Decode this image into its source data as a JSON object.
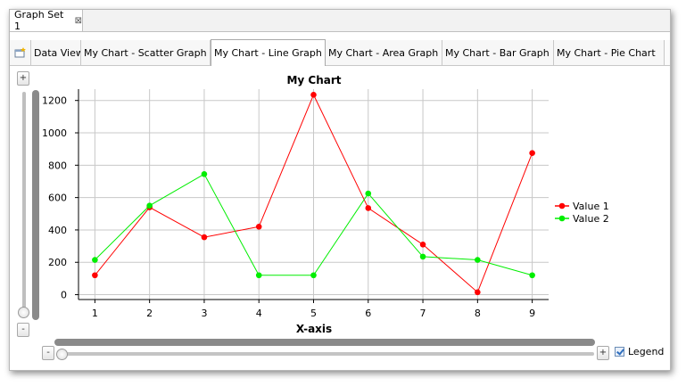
{
  "editor": {
    "tab_label": "Graph Set 1",
    "close_glyph": "⊠"
  },
  "tabs": [
    {
      "label": "",
      "icon": "new-window-icon"
    },
    {
      "label": "Data View"
    },
    {
      "label": "My Chart - Scatter Graph"
    },
    {
      "label": "My Chart - Line Graph",
      "active": true,
      "close_glyph": "⊠"
    },
    {
      "label": "My Chart - Area Graph"
    },
    {
      "label": "My Chart - Bar Graph"
    },
    {
      "label": "My Chart - Pie Chart"
    }
  ],
  "zoom": {
    "plus": "+",
    "minus": "-"
  },
  "legend_toggle": {
    "label": "Legend",
    "checked": true
  },
  "chart_data": {
    "type": "line",
    "title": "My Chart",
    "xlabel": "X-axis",
    "ylabel": "",
    "x": [
      1,
      2,
      3,
      4,
      5,
      6,
      7,
      8,
      9
    ],
    "xlim": [
      0.7,
      9.3
    ],
    "ylim": [
      -30,
      1270
    ],
    "yticks": [
      0,
      200,
      400,
      600,
      800,
      1000,
      1200
    ],
    "grid": true,
    "legend": "right",
    "series": [
      {
        "name": "Value 1",
        "color": "#ff0000",
        "values": [
          120,
          540,
          355,
          420,
          1235,
          535,
          310,
          15,
          875
        ]
      },
      {
        "name": "Value 2",
        "color": "#00ee00",
        "values": [
          215,
          550,
          745,
          120,
          120,
          625,
          235,
          215,
          120
        ]
      }
    ]
  }
}
